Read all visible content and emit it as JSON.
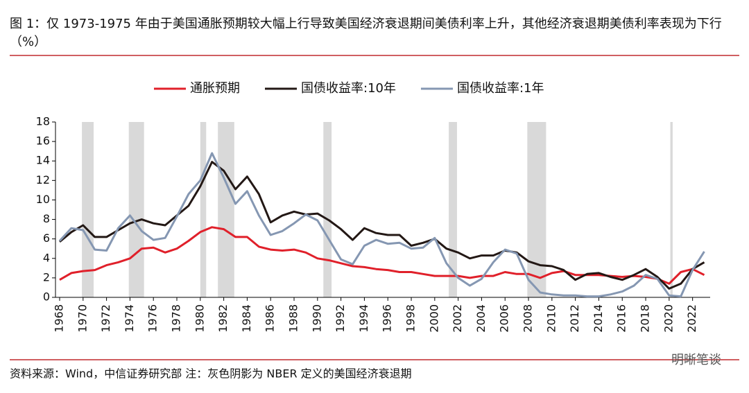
{
  "chart_data": {
    "type": "line",
    "title": "图 1：仅 1973-1975 年由于美国通胀预期较大幅上行导致美国经济衰退期间美债利率上升，其他经济衰退期美债利率表现为下行（%）",
    "source": "资料来源：Wind，中信证券研究部 注：灰色阴影为 NBER 定义的美国经济衰退期",
    "watermark": "明晰笔谈",
    "x": [
      1968,
      1969,
      1970,
      1971,
      1972,
      1973,
      1974,
      1975,
      1976,
      1977,
      1978,
      1979,
      1980,
      1981,
      1982,
      1983,
      1984,
      1985,
      1986,
      1987,
      1988,
      1989,
      1990,
      1991,
      1992,
      1993,
      1994,
      1995,
      1996,
      1997,
      1998,
      1999,
      2000,
      2001,
      2002,
      2003,
      2004,
      2005,
      2006,
      2007,
      2008,
      2009,
      2010,
      2011,
      2012,
      2013,
      2014,
      2015,
      2016,
      2017,
      2018,
      2019,
      2020,
      2021,
      2022,
      2023
    ],
    "series": [
      {
        "name": "通胀预期",
        "color": "#e0202a",
        "values": [
          1.8,
          2.5,
          2.7,
          2.8,
          3.3,
          3.6,
          4.0,
          5.0,
          5.1,
          4.6,
          5.0,
          5.8,
          6.7,
          7.2,
          7.0,
          6.2,
          6.2,
          5.2,
          4.9,
          4.8,
          4.9,
          4.6,
          4.0,
          3.8,
          3.5,
          3.2,
          3.1,
          2.9,
          2.8,
          2.6,
          2.6,
          2.4,
          2.2,
          2.2,
          2.2,
          2.0,
          2.2,
          2.2,
          2.6,
          2.4,
          2.4,
          2.0,
          2.5,
          2.7,
          2.3,
          2.3,
          2.3,
          2.2,
          2.1,
          2.2,
          2.1,
          1.9,
          1.4,
          2.6,
          2.9,
          2.3
        ]
      },
      {
        "name": "国债收益率:10年",
        "color": "#231815",
        "values": [
          5.7,
          6.7,
          7.4,
          6.2,
          6.2,
          6.9,
          7.6,
          8.0,
          7.6,
          7.4,
          8.4,
          9.4,
          11.4,
          13.9,
          13.0,
          11.1,
          12.4,
          10.6,
          7.7,
          8.4,
          8.8,
          8.5,
          8.6,
          7.9,
          7.0,
          5.9,
          7.1,
          6.6,
          6.4,
          6.4,
          5.3,
          5.6,
          6.0,
          5.0,
          4.6,
          4.0,
          4.3,
          4.3,
          4.8,
          4.6,
          3.7,
          3.3,
          3.2,
          2.8,
          1.8,
          2.4,
          2.5,
          2.1,
          1.8,
          2.3,
          2.9,
          2.1,
          0.9,
          1.4,
          2.9,
          3.6
        ]
      },
      {
        "name": "国债收益率:1年",
        "color": "#8597b2",
        "values": [
          5.8,
          7.1,
          6.9,
          4.9,
          4.8,
          7.1,
          8.4,
          6.8,
          5.9,
          6.1,
          8.3,
          10.6,
          12.0,
          14.8,
          12.3,
          9.6,
          10.9,
          8.4,
          6.4,
          6.8,
          7.6,
          8.5,
          7.9,
          5.9,
          3.9,
          3.4,
          5.3,
          5.9,
          5.5,
          5.6,
          5.0,
          5.1,
          6.1,
          3.5,
          2.0,
          1.2,
          1.9,
          3.6,
          4.9,
          4.5,
          1.8,
          0.5,
          0.3,
          0.2,
          0.2,
          0.1,
          0.1,
          0.3,
          0.6,
          1.2,
          2.3,
          1.9,
          0.2,
          0.1,
          2.8,
          4.7
        ]
      }
    ],
    "shaded_periods": [
      [
        1969.9,
        1970.9
      ],
      [
        1973.9,
        1975.2
      ],
      [
        1980.0,
        1980.5
      ],
      [
        1981.5,
        1982.9
      ],
      [
        1990.5,
        1991.2
      ],
      [
        2001.2,
        2001.9
      ],
      [
        2007.9,
        2009.5
      ],
      [
        2020.1,
        2020.3
      ]
    ],
    "shade_color": "#d9d9d9",
    "xlim": [
      1968,
      2023.5
    ],
    "xticks": [
      1968,
      1970,
      1972,
      1974,
      1976,
      1978,
      1980,
      1982,
      1984,
      1986,
      1988,
      1990,
      1992,
      1994,
      1996,
      1998,
      2000,
      2002,
      2004,
      2006,
      2008,
      2010,
      2012,
      2014,
      2016,
      2018,
      2020,
      2022
    ],
    "ylim": [
      0,
      18
    ],
    "yticks": [
      0,
      2,
      4,
      6,
      8,
      10,
      12,
      14,
      16,
      18
    ],
    "legend": "top"
  }
}
